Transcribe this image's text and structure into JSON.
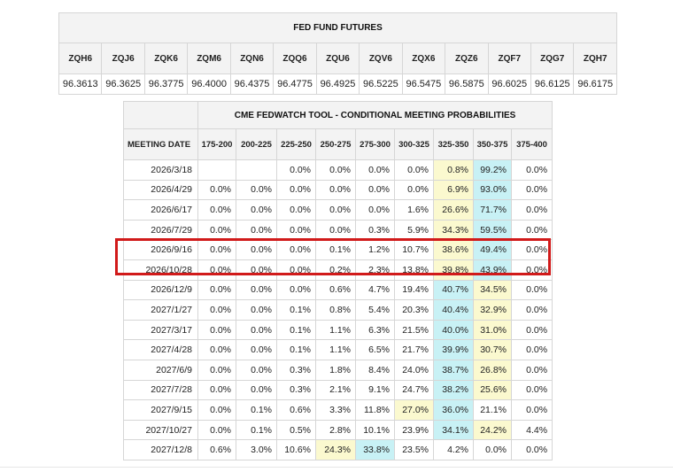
{
  "futures": {
    "title": "FED FUND FUTURES",
    "contracts": [
      "ZQH6",
      "ZQJ6",
      "ZQK6",
      "ZQM6",
      "ZQN6",
      "ZQQ6",
      "ZQU6",
      "ZQV6",
      "ZQX6",
      "ZQZ6",
      "ZQF7",
      "ZQG7",
      "ZQH7"
    ],
    "prices": [
      "96.3613",
      "96.3625",
      "96.3775",
      "96.4000",
      "96.4375",
      "96.4775",
      "96.4925",
      "96.5225",
      "96.5475",
      "96.5875",
      "96.6025",
      "96.6125",
      "96.6175"
    ]
  },
  "cme": {
    "title": "CME FEDWATCH TOOL - CONDITIONAL MEETING PROBABILITIES",
    "date_header": "MEETING DATE",
    "ranges": [
      "175-200",
      "200-225",
      "225-250",
      "250-275",
      "275-300",
      "300-325",
      "325-350",
      "350-375",
      "375-400"
    ],
    "rows": [
      {
        "date": "2026/3/18",
        "values": [
          "",
          "",
          "0.0%",
          "0.0%",
          "0.0%",
          "0.0%",
          "0.8%",
          "99.2%",
          "0.0%"
        ]
      },
      {
        "date": "2026/4/29",
        "values": [
          "0.0%",
          "0.0%",
          "0.0%",
          "0.0%",
          "0.0%",
          "0.0%",
          "6.9%",
          "93.0%",
          "0.0%"
        ]
      },
      {
        "date": "2026/6/17",
        "values": [
          "0.0%",
          "0.0%",
          "0.0%",
          "0.0%",
          "0.0%",
          "1.6%",
          "26.6%",
          "71.7%",
          "0.0%"
        ]
      },
      {
        "date": "2026/7/29",
        "values": [
          "0.0%",
          "0.0%",
          "0.0%",
          "0.0%",
          "0.3%",
          "5.9%",
          "34.3%",
          "59.5%",
          "0.0%"
        ]
      },
      {
        "date": "2026/9/16",
        "values": [
          "0.0%",
          "0.0%",
          "0.0%",
          "0.1%",
          "1.2%",
          "10.7%",
          "38.6%",
          "49.4%",
          "0.0%"
        ]
      },
      {
        "date": "2026/10/28",
        "values": [
          "0.0%",
          "0.0%",
          "0.0%",
          "0.2%",
          "2.3%",
          "13.8%",
          "39.8%",
          "43.9%",
          "0.0%"
        ]
      },
      {
        "date": "2026/12/9",
        "values": [
          "0.0%",
          "0.0%",
          "0.0%",
          "0.6%",
          "4.7%",
          "19.4%",
          "40.7%",
          "34.5%",
          "0.0%"
        ]
      },
      {
        "date": "2027/1/27",
        "values": [
          "0.0%",
          "0.0%",
          "0.1%",
          "0.8%",
          "5.4%",
          "20.3%",
          "40.4%",
          "32.9%",
          "0.0%"
        ]
      },
      {
        "date": "2027/3/17",
        "values": [
          "0.0%",
          "0.0%",
          "0.1%",
          "1.1%",
          "6.3%",
          "21.5%",
          "40.0%",
          "31.0%",
          "0.0%"
        ]
      },
      {
        "date": "2027/4/28",
        "values": [
          "0.0%",
          "0.0%",
          "0.1%",
          "1.1%",
          "6.5%",
          "21.7%",
          "39.9%",
          "30.7%",
          "0.0%"
        ]
      },
      {
        "date": "2027/6/9",
        "values": [
          "0.0%",
          "0.0%",
          "0.3%",
          "1.8%",
          "8.4%",
          "24.0%",
          "38.7%",
          "26.8%",
          "0.0%"
        ]
      },
      {
        "date": "2027/7/28",
        "values": [
          "0.0%",
          "0.0%",
          "0.3%",
          "2.1%",
          "9.1%",
          "24.7%",
          "38.2%",
          "25.6%",
          "0.0%"
        ]
      },
      {
        "date": "2027/9/15",
        "values": [
          "0.0%",
          "0.1%",
          "0.6%",
          "3.3%",
          "11.8%",
          "27.0%",
          "36.0%",
          "21.1%",
          "0.0%"
        ]
      },
      {
        "date": "2027/10/27",
        "values": [
          "0.0%",
          "0.1%",
          "0.5%",
          "2.8%",
          "10.1%",
          "23.9%",
          "34.1%",
          "24.2%",
          "4.4%"
        ]
      },
      {
        "date": "2027/12/8",
        "values": [
          "0.6%",
          "3.0%",
          "10.6%",
          "24.3%",
          "33.8%",
          "23.5%",
          "4.2%",
          "0.0%",
          "0.0%"
        ]
      }
    ],
    "highlight_colors": {
      "blue": "#c8f1f5",
      "yellow": "#fbf9cf",
      "box": "#d11a1a"
    }
  }
}
